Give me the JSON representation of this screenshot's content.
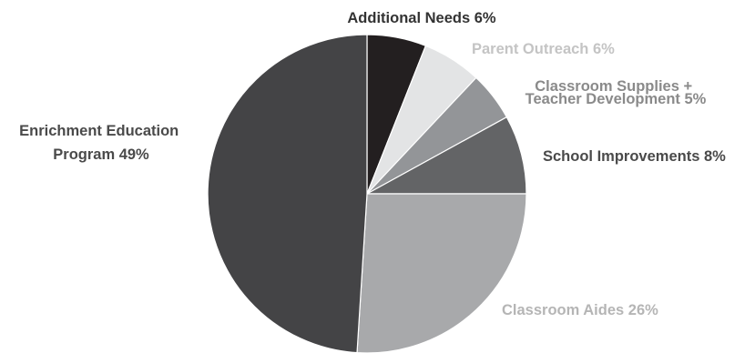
{
  "chart_data": {
    "type": "pie",
    "title": "",
    "start_angle_deg": 0,
    "direction": "clockwise",
    "slices": [
      {
        "label": "Additional Needs 6%",
        "value": 6,
        "color": "#231f20",
        "label_color": "#333333"
      },
      {
        "label": "Parent Outreach 6%",
        "value": 6,
        "color": "#e3e4e5",
        "label_color": "#c4c4c4"
      },
      {
        "label": "Classroom Supplies + Teacher Development 5%",
        "label_lines": [
          "Classroom Supplies +",
          "Teacher Development 5%"
        ],
        "value": 5,
        "color": "#939598",
        "label_color": "#8a8a8a"
      },
      {
        "label": "School Improvements 8%",
        "value": 8,
        "color": "#636466",
        "label_color": "#4a4a4a"
      },
      {
        "label": "Classroom Aides 26%",
        "value": 26,
        "color": "#a8a9ab",
        "label_color": "#b5b5b5"
      },
      {
        "label": "Enrichment Education Program 49%",
        "label_lines": [
          "Enrichment Education",
          "Program 49%"
        ],
        "value": 49,
        "color": "#444446",
        "label_color": "#4a4a4a"
      }
    ]
  }
}
